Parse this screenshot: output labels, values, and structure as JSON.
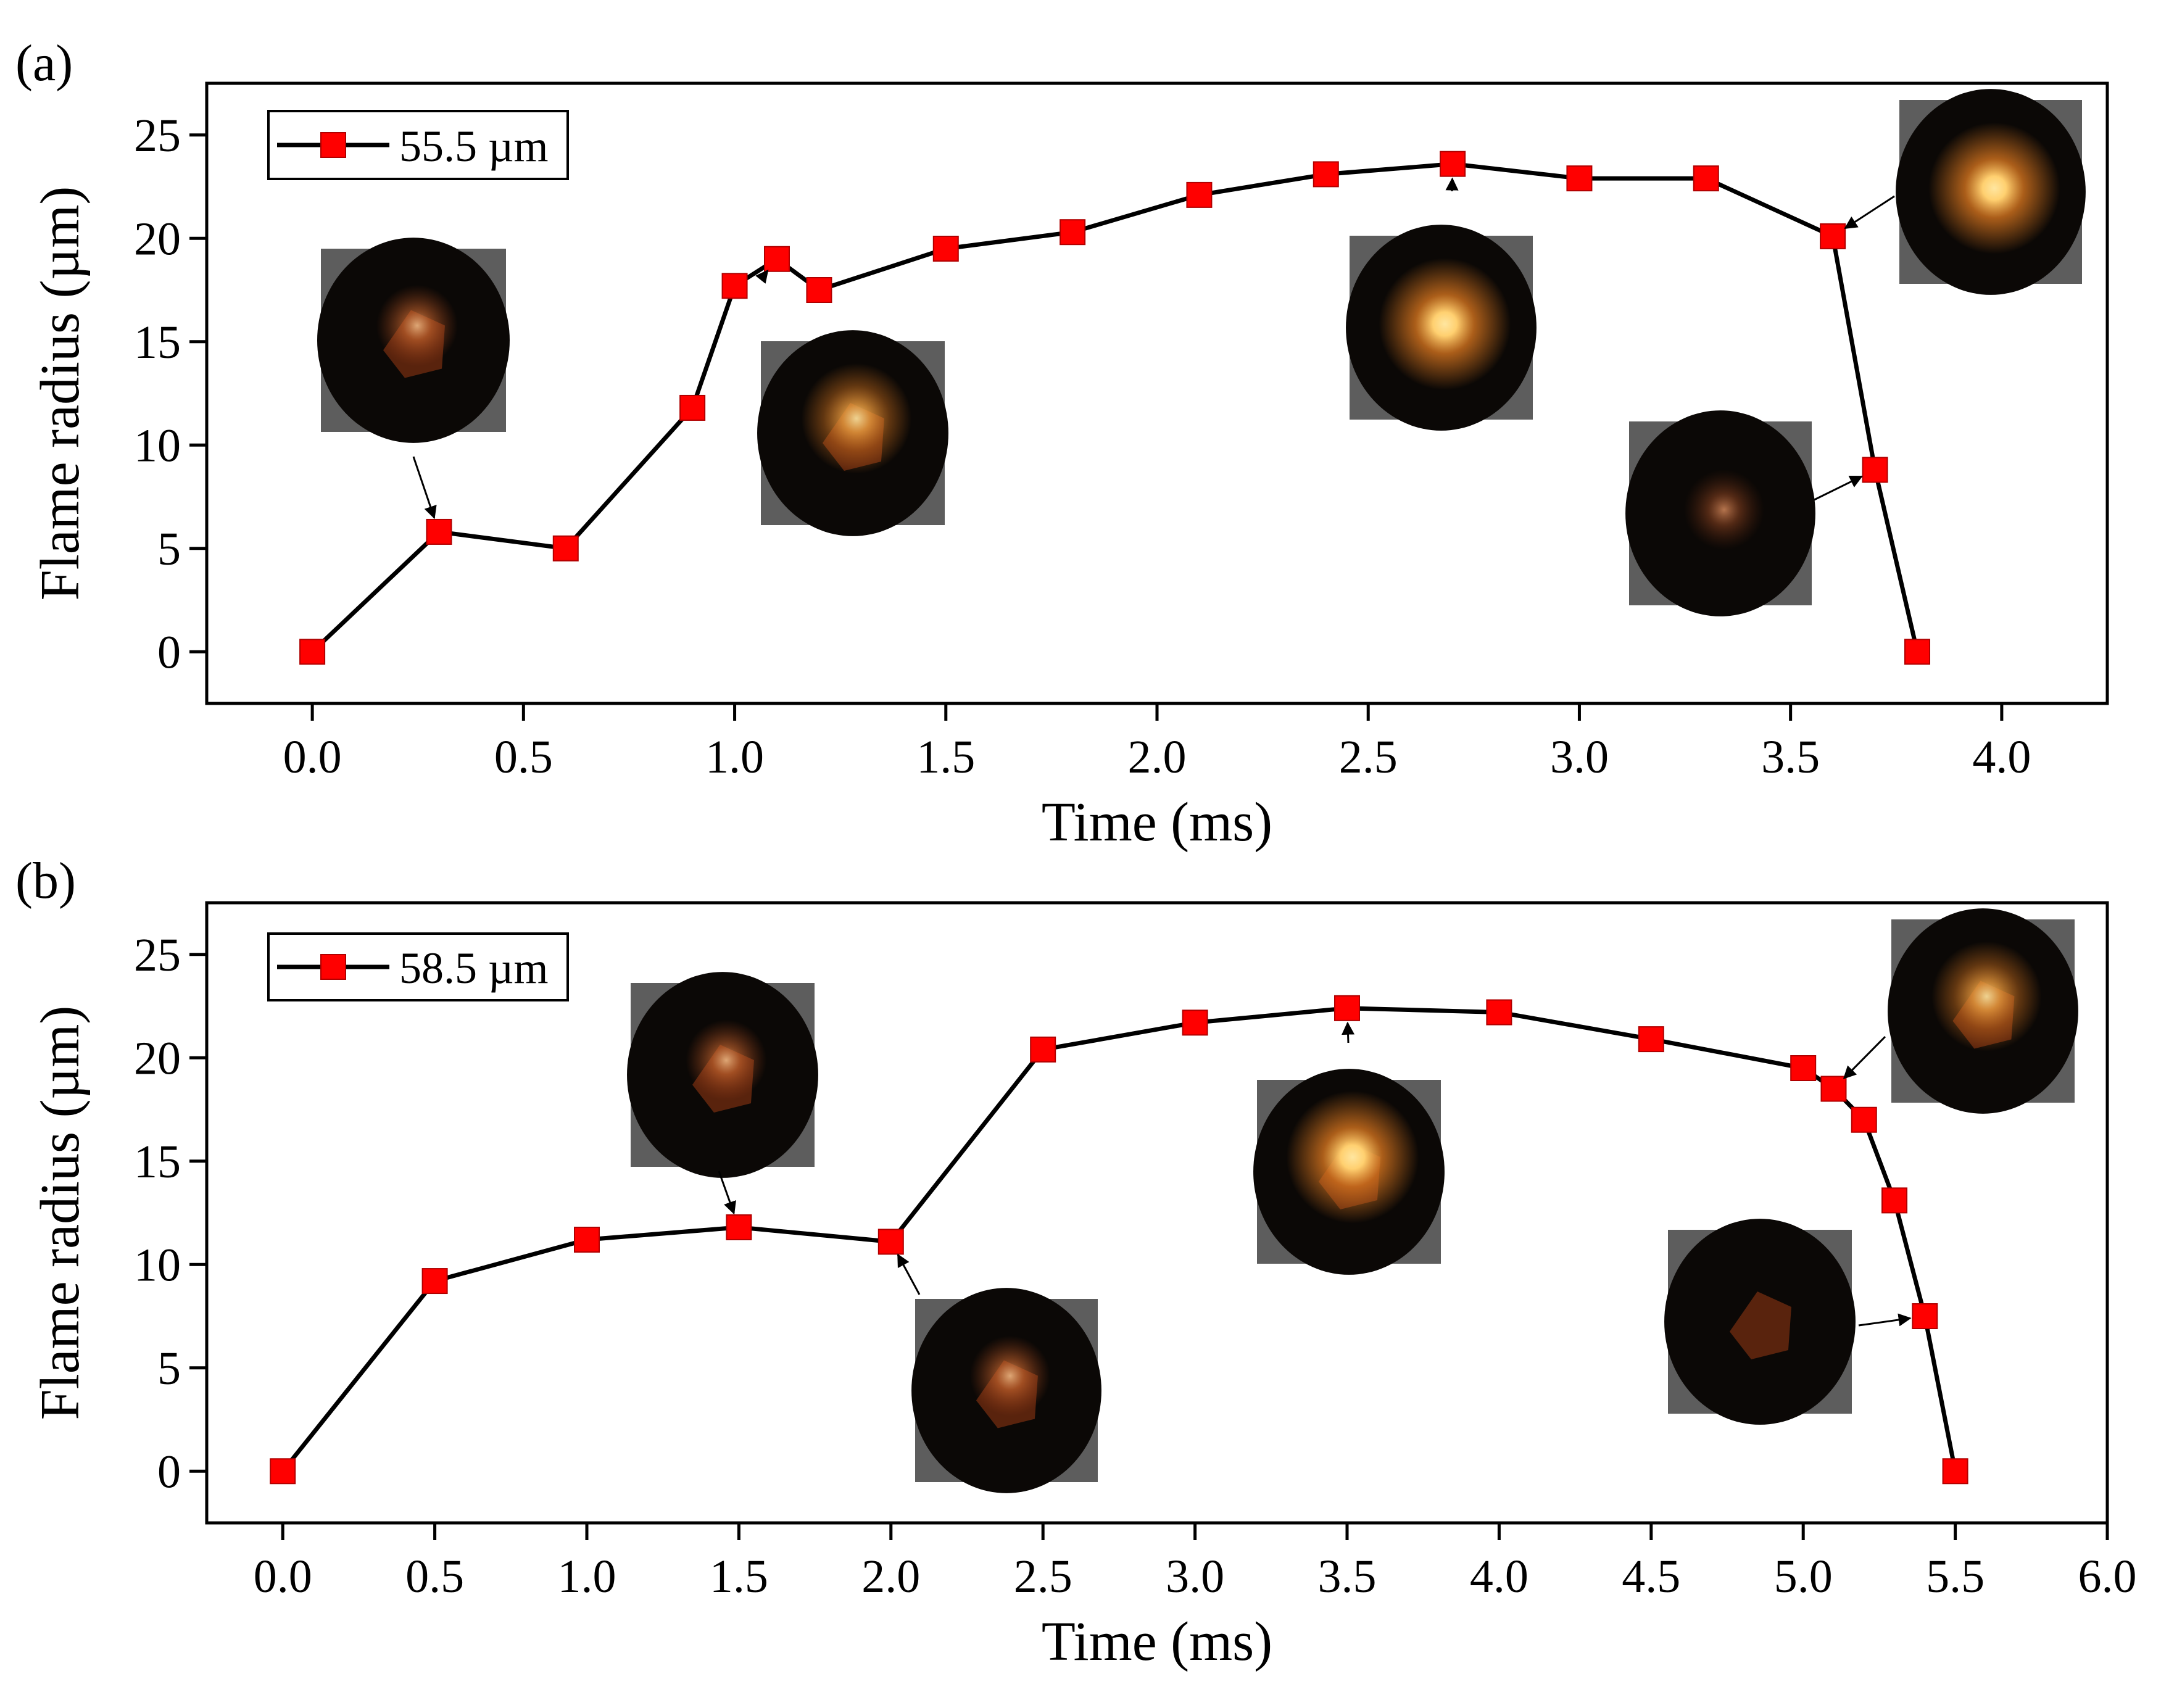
{
  "colors": {
    "marker": "#ff0000",
    "marker_edge": "#b00000",
    "line": "#000000",
    "glow_a": "#ffe6a0",
    "glow_b": "#e07a20",
    "photo_bg": "#0b0806",
    "photo_edge": "#5d5d5d",
    "fragment": "#9a3a14"
  },
  "chart_data": [
    {
      "type": "line",
      "panel_label": "(a)",
      "xlabel": "Time (ms)",
      "ylabel": "Flame radius (µm)",
      "xlim": [
        -0.25,
        4.25
      ],
      "ylim": [
        -2.5,
        27.5
      ],
      "xticks": [
        "0.0",
        "0.5",
        "1.0",
        "1.5",
        "2.0",
        "2.5",
        "3.0",
        "3.5",
        "4.0"
      ],
      "xtick_values": [
        0,
        0.5,
        1.0,
        1.5,
        2.0,
        2.5,
        3.0,
        3.5,
        4.0
      ],
      "yticks": [
        "0",
        "5",
        "10",
        "15",
        "20",
        "25"
      ],
      "ytick_values": [
        0,
        5,
        10,
        15,
        20,
        25
      ],
      "legend_position": "top-left",
      "grid": false,
      "series": [
        {
          "name": "55.5 µm",
          "x": [
            0.0,
            0.3,
            0.6,
            0.9,
            1.0,
            1.1,
            1.2,
            1.5,
            1.8,
            2.1,
            2.4,
            2.7,
            3.0,
            3.3,
            3.6,
            3.7,
            3.8
          ],
          "y": [
            0.0,
            5.8,
            5.0,
            11.8,
            17.7,
            19.0,
            17.5,
            19.5,
            20.3,
            22.1,
            23.1,
            23.6,
            22.9,
            22.9,
            20.1,
            8.8,
            0.0
          ]
        }
      ],
      "insets": [
        {
          "name": "flame-image-inset-0.3ms",
          "points_to_x": 0.3,
          "glow": "weak",
          "fragment": true
        },
        {
          "name": "flame-image-inset-1.1ms",
          "points_to_x": 1.1,
          "glow": "medium",
          "fragment": true
        },
        {
          "name": "flame-image-inset-2.7ms",
          "points_to_x": 2.7,
          "glow": "bright",
          "fragment": false
        },
        {
          "name": "flame-image-inset-3.6ms",
          "points_to_x": 3.6,
          "glow": "bright",
          "fragment": false
        },
        {
          "name": "flame-image-inset-3.7ms",
          "points_to_x": 3.7,
          "glow": "faint",
          "fragment": false
        }
      ]
    },
    {
      "type": "line",
      "panel_label": "(b)",
      "xlabel": "Time (ms)",
      "ylabel": "Flame radius (µm)",
      "xlim": [
        -0.25,
        6.0
      ],
      "ylim": [
        -2.5,
        27.5
      ],
      "xticks": [
        "0.0",
        "0.5",
        "1.0",
        "1.5",
        "2.0",
        "2.5",
        "3.0",
        "3.5",
        "4.0",
        "4.5",
        "5.0",
        "5.5",
        "6.0"
      ],
      "xtick_values": [
        0,
        0.5,
        1.0,
        1.5,
        2.0,
        2.5,
        3.0,
        3.5,
        4.0,
        4.5,
        5.0,
        5.5,
        6.0
      ],
      "yticks": [
        "0",
        "5",
        "10",
        "15",
        "20",
        "25"
      ],
      "ytick_values": [
        0,
        5,
        10,
        15,
        20,
        25
      ],
      "legend_position": "top-left",
      "grid": false,
      "series": [
        {
          "name": "58.5 µm",
          "x": [
            0.0,
            0.5,
            1.0,
            1.5,
            2.0,
            2.5,
            3.0,
            3.5,
            4.0,
            4.5,
            5.0,
            5.1,
            5.2,
            5.3,
            5.4,
            5.5
          ],
          "y": [
            0.0,
            9.2,
            11.2,
            11.8,
            11.1,
            20.4,
            21.7,
            22.4,
            22.2,
            20.9,
            19.5,
            18.5,
            17.0,
            13.1,
            7.5,
            0.0
          ]
        }
      ],
      "insets": [
        {
          "name": "flame-image-inset-1.5ms",
          "points_to_x": 1.5,
          "glow": "weak",
          "fragment": true
        },
        {
          "name": "flame-image-inset-2.0ms",
          "points_to_x": 2.0,
          "glow": "weak",
          "fragment": true
        },
        {
          "name": "flame-image-inset-3.5ms",
          "points_to_x": 3.5,
          "glow": "bright",
          "fragment": true
        },
        {
          "name": "flame-image-inset-5.1ms",
          "points_to_x": 5.1,
          "glow": "medium",
          "fragment": true
        },
        {
          "name": "flame-image-inset-5.4ms",
          "points_to_x": 5.4,
          "glow": "none",
          "fragment": true
        }
      ]
    }
  ]
}
